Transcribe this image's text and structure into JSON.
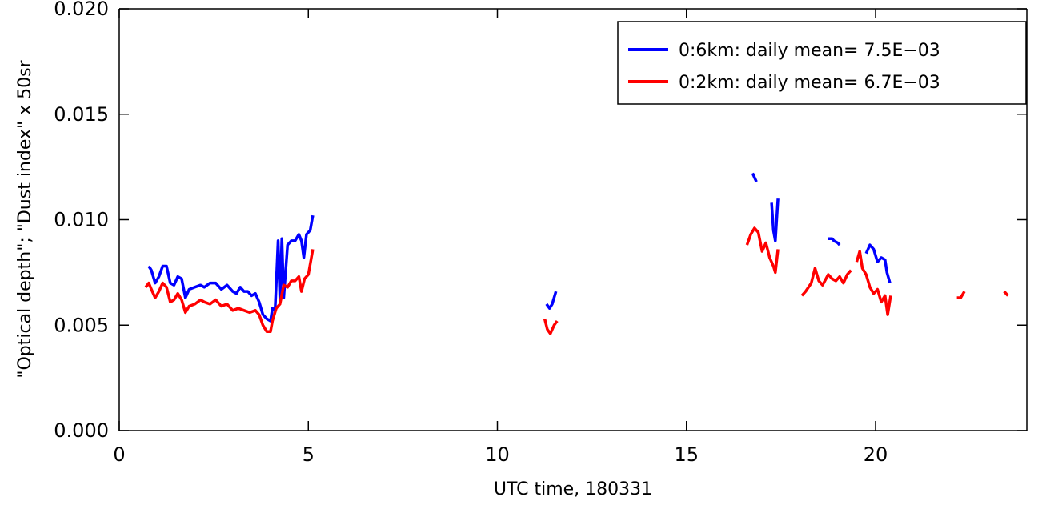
{
  "chart_data": {
    "type": "line",
    "title": "",
    "xlabel": "UTC time, 180331",
    "ylabel": "\"Optical depth\"; \"Dust index\" x 50sr",
    "xlim": [
      0,
      24
    ],
    "ylim": [
      0,
      0.02
    ],
    "xticks": [
      0,
      5,
      10,
      15,
      20
    ],
    "xtick_labels": [
      "0",
      "5",
      "10",
      "15",
      "20"
    ],
    "yticks": [
      0,
      0.005,
      0.01,
      0.015,
      0.02
    ],
    "ytick_labels": [
      "0.000",
      "0.005",
      "0.010",
      "0.015",
      "0.020"
    ],
    "grid": false,
    "legend_position": "top-right",
    "series": [
      {
        "name": "0:6km: daily mean= 7.5E−03",
        "color": "#0000ff",
        "segments": [
          [
            [
              0.78,
              0.0078
            ],
            [
              0.85,
              0.0076
            ],
            [
              0.95,
              0.007
            ],
            [
              1.05,
              0.0073
            ],
            [
              1.15,
              0.0078
            ],
            [
              1.25,
              0.0078
            ],
            [
              1.35,
              0.007
            ],
            [
              1.45,
              0.0069
            ],
            [
              1.55,
              0.0073
            ],
            [
              1.65,
              0.0072
            ],
            [
              1.75,
              0.0063
            ],
            [
              1.85,
              0.0067
            ],
            [
              2.0,
              0.0068
            ],
            [
              2.15,
              0.0069
            ],
            [
              2.25,
              0.0068
            ],
            [
              2.4,
              0.007
            ],
            [
              2.55,
              0.007
            ],
            [
              2.7,
              0.0067
            ],
            [
              2.85,
              0.0069
            ],
            [
              3.0,
              0.0066
            ],
            [
              3.1,
              0.0065
            ],
            [
              3.2,
              0.0068
            ],
            [
              3.3,
              0.0066
            ],
            [
              3.4,
              0.0066
            ],
            [
              3.5,
              0.0064
            ],
            [
              3.6,
              0.0065
            ],
            [
              3.7,
              0.0061
            ],
            [
              3.8,
              0.0055
            ],
            [
              3.9,
              0.0053
            ],
            [
              4.0,
              0.0052
            ],
            [
              4.05,
              0.0058
            ],
            [
              4.12,
              0.0057
            ],
            [
              4.2,
              0.009
            ],
            [
              4.25,
              0.0062
            ],
            [
              4.3,
              0.0091
            ],
            [
              4.35,
              0.0063
            ],
            [
              4.45,
              0.0088
            ],
            [
              4.55,
              0.009
            ],
            [
              4.65,
              0.009
            ],
            [
              4.75,
              0.0093
            ],
            [
              4.82,
              0.009
            ],
            [
              4.88,
              0.0082
            ],
            [
              4.95,
              0.0093
            ],
            [
              5.05,
              0.0095
            ],
            [
              5.12,
              0.0102
            ]
          ],
          [
            [
              11.3,
              0.006
            ],
            [
              11.38,
              0.0058
            ],
            [
              11.45,
              0.006
            ],
            [
              11.55,
              0.0066
            ]
          ],
          [
            [
              16.75,
              0.0122
            ],
            [
              16.85,
              0.0118
            ]
          ],
          [
            [
              17.25,
              0.0108
            ],
            [
              17.3,
              0.0095
            ],
            [
              17.35,
              0.009
            ],
            [
              17.42,
              0.011
            ]
          ],
          [
            [
              18.75,
              0.0091
            ],
            [
              18.85,
              0.0091
            ],
            [
              18.9,
              0.009
            ],
            [
              19.0,
              0.0089
            ],
            [
              19.05,
              0.0088
            ]
          ],
          [
            [
              19.75,
              0.0084
            ],
            [
              19.85,
              0.0088
            ],
            [
              19.95,
              0.0086
            ],
            [
              20.05,
              0.008
            ],
            [
              20.15,
              0.0082
            ],
            [
              20.25,
              0.0081
            ],
            [
              20.3,
              0.0075
            ],
            [
              20.38,
              0.007
            ]
          ]
        ]
      },
      {
        "name": "0:2km: daily mean= 6.7E−03",
        "color": "#ff0000",
        "segments": [
          [
            [
              0.7,
              0.0068
            ],
            [
              0.78,
              0.007
            ],
            [
              0.85,
              0.0067
            ],
            [
              0.95,
              0.0063
            ],
            [
              1.05,
              0.0066
            ],
            [
              1.15,
              0.007
            ],
            [
              1.25,
              0.0068
            ],
            [
              1.35,
              0.0061
            ],
            [
              1.45,
              0.0062
            ],
            [
              1.55,
              0.0065
            ],
            [
              1.65,
              0.0062
            ],
            [
              1.75,
              0.0056
            ],
            [
              1.85,
              0.0059
            ],
            [
              2.0,
              0.006
            ],
            [
              2.15,
              0.0062
            ],
            [
              2.25,
              0.0061
            ],
            [
              2.4,
              0.006
            ],
            [
              2.55,
              0.0062
            ],
            [
              2.7,
              0.0059
            ],
            [
              2.85,
              0.006
            ],
            [
              3.0,
              0.0057
            ],
            [
              3.15,
              0.0058
            ],
            [
              3.3,
              0.0057
            ],
            [
              3.45,
              0.0056
            ],
            [
              3.6,
              0.0057
            ],
            [
              3.7,
              0.0055
            ],
            [
              3.8,
              0.005
            ],
            [
              3.9,
              0.0047
            ],
            [
              4.0,
              0.0047
            ],
            [
              4.05,
              0.0052
            ],
            [
              4.15,
              0.0058
            ],
            [
              4.25,
              0.006
            ],
            [
              4.35,
              0.0069
            ],
            [
              4.45,
              0.0068
            ],
            [
              4.55,
              0.0071
            ],
            [
              4.65,
              0.0071
            ],
            [
              4.75,
              0.0073
            ],
            [
              4.82,
              0.0066
            ],
            [
              4.9,
              0.0072
            ],
            [
              5.0,
              0.0074
            ],
            [
              5.12,
              0.0086
            ]
          ],
          [
            [
              11.25,
              0.0053
            ],
            [
              11.32,
              0.0048
            ],
            [
              11.4,
              0.0046
            ],
            [
              11.5,
              0.005
            ],
            [
              11.58,
              0.0052
            ]
          ],
          [
            [
              16.6,
              0.0088
            ],
            [
              16.7,
              0.0093
            ],
            [
              16.8,
              0.0096
            ],
            [
              16.9,
              0.0094
            ],
            [
              17.0,
              0.0085
            ],
            [
              17.1,
              0.0089
            ],
            [
              17.2,
              0.0082
            ],
            [
              17.3,
              0.0078
            ],
            [
              17.35,
              0.0075
            ],
            [
              17.42,
              0.0086
            ]
          ],
          [
            [
              18.05,
              0.0064
            ],
            [
              18.15,
              0.0066
            ],
            [
              18.3,
              0.007
            ],
            [
              18.4,
              0.0077
            ],
            [
              18.5,
              0.0071
            ],
            [
              18.6,
              0.0069
            ],
            [
              18.75,
              0.0074
            ],
            [
              18.85,
              0.0072
            ],
            [
              18.95,
              0.0071
            ],
            [
              19.05,
              0.0073
            ],
            [
              19.15,
              0.007
            ],
            [
              19.25,
              0.0074
            ],
            [
              19.35,
              0.0076
            ]
          ],
          [
            [
              19.5,
              0.008
            ],
            [
              19.58,
              0.0085
            ],
            [
              19.65,
              0.0077
            ],
            [
              19.75,
              0.0074
            ],
            [
              19.85,
              0.0068
            ],
            [
              19.95,
              0.0065
            ],
            [
              20.05,
              0.0067
            ],
            [
              20.15,
              0.0061
            ],
            [
              20.25,
              0.0064
            ],
            [
              20.32,
              0.0055
            ],
            [
              20.4,
              0.0064
            ]
          ],
          [
            [
              22.15,
              0.0063
            ],
            [
              22.25,
              0.0063
            ],
            [
              22.35,
              0.0066
            ]
          ],
          [
            [
              23.4,
              0.0066
            ],
            [
              23.5,
              0.0064
            ]
          ]
        ]
      }
    ]
  }
}
